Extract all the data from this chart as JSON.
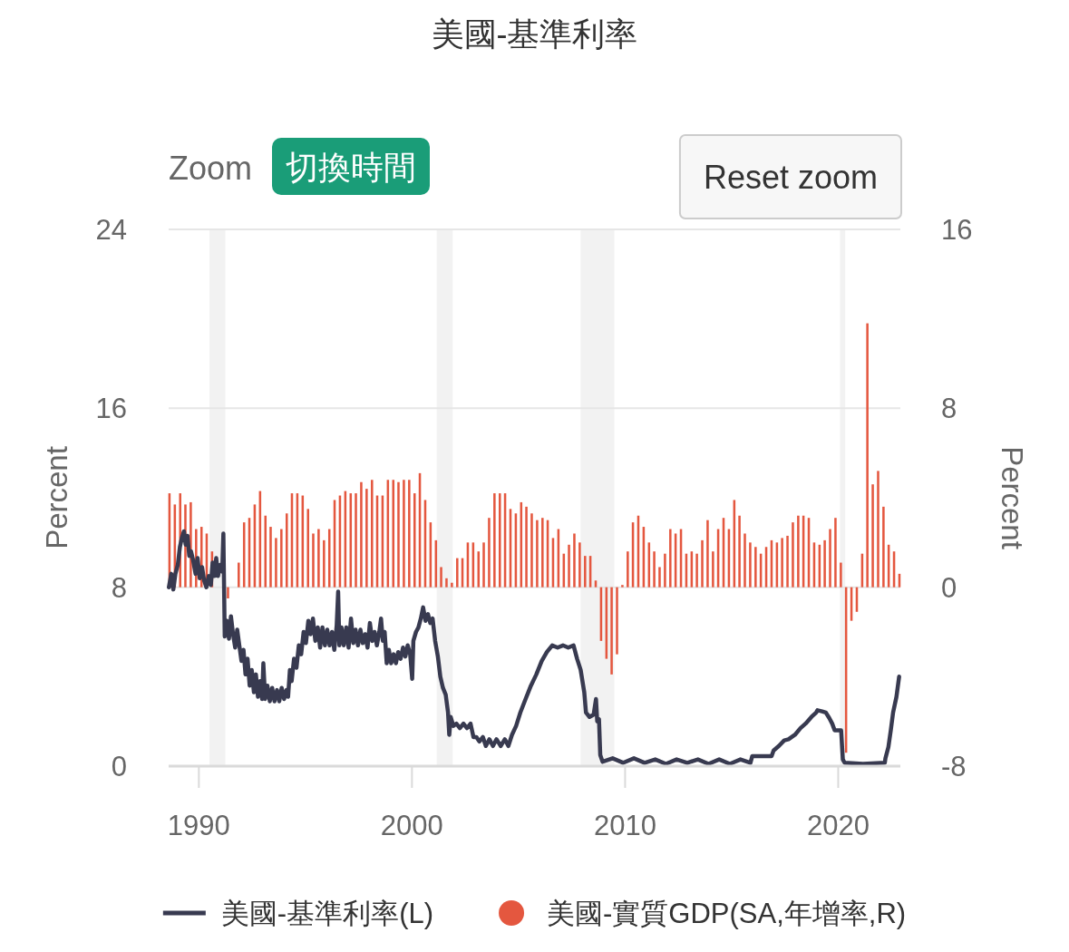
{
  "chart_data": {
    "type": "bar",
    "title": "美國-基準利率",
    "ylabel": "Percent",
    "y2label": "Percent",
    "annotations": [
      "Zoom",
      "切換時間",
      "Reset zoom"
    ],
    "xlim": [
      "1988-08-01",
      "2022-12-01"
    ],
    "xticks": [
      "1990",
      "2000",
      "2010",
      "2020"
    ],
    "ylim": [
      0,
      24
    ],
    "yticks": [
      0,
      8,
      16,
      24
    ],
    "y2lim": [
      -8,
      16
    ],
    "y2ticks": [
      -8,
      0,
      8,
      16
    ],
    "grid": "y",
    "legend": "bottom",
    "bands": [
      {
        "axis": "x",
        "from": "1990-07-01",
        "to": "1991-03-31",
        "color": "#f2f2f2"
      },
      {
        "axis": "x",
        "from": "2001-03-01",
        "to": "2001-11-30",
        "color": "#f2f2f2"
      },
      {
        "axis": "x",
        "from": "2007-12-01",
        "to": "2009-06-30",
        "color": "#f2f2f2"
      },
      {
        "axis": "x",
        "from": "2020-02-01",
        "to": "2020-04-30",
        "color": "#f2f2f2"
      }
    ],
    "series": [
      {
        "name": "美國-基準利率(L)",
        "type": "line",
        "color": "#383a50",
        "x": [
          "1988-08-05",
          "1988-09-15",
          "1988-10-20",
          "1988-11-25",
          "1989-01-05",
          "1989-02-10",
          "1989-03-15",
          "1989-04-20",
          "1989-05-20",
          "1989-06-20",
          "1989-07-20",
          "1989-08-20",
          "1989-09-25",
          "1989-11-05",
          "1989-12-10",
          "1990-01-15",
          "1990-02-25",
          "1990-04-01",
          "1990-05-10",
          "1990-06-20",
          "1990-07-25",
          "1990-08-25",
          "1990-09-25",
          "1990-10-25",
          "1990-11-25",
          "1991-01-01",
          "1991-02-05",
          "1991-02-25",
          "1991-03-20",
          "1991-04-25",
          "1991-06-01",
          "1991-07-05",
          "1991-08-10",
          "1991-09-15",
          "1991-10-20",
          "1991-11-25",
          "1992-01-01",
          "1992-02-05",
          "1992-03-10",
          "1992-04-15",
          "1992-05-20",
          "1992-06-25",
          "1992-08-01",
          "1992-09-05",
          "1992-10-10",
          "1992-11-15",
          "1992-12-20",
          "1993-01-10",
          "1993-02-10",
          "1993-03-20",
          "1993-05-01",
          "1993-06-10",
          "1993-07-20",
          "1993-09-01",
          "1993-10-10",
          "1993-11-20",
          "1994-01-01",
          "1994-02-10",
          "1994-03-10",
          "1994-04-10",
          "1994-05-10",
          "1994-06-20",
          "1994-08-01",
          "1994-09-10",
          "1994-10-20",
          "1994-12-01",
          "1995-01-10",
          "1995-02-20",
          "1995-04-01",
          "1995-05-10",
          "1995-06-20",
          "1995-08-01",
          "1995-09-10",
          "1995-10-20",
          "1995-12-01",
          "1996-01-10",
          "1996-02-20",
          "1996-04-01",
          "1996-05-10",
          "1996-06-20",
          "1996-07-15",
          "1996-08-05",
          "1996-09-10",
          "1996-10-20",
          "1996-12-01",
          "1997-01-10",
          "1997-02-20",
          "1997-04-01",
          "1997-05-10",
          "1997-06-20",
          "1997-08-01",
          "1997-09-10",
          "1997-10-20",
          "1997-12-01",
          "1998-01-10",
          "1998-02-20",
          "1998-04-01",
          "1998-05-10",
          "1998-06-20",
          "1998-07-20",
          "1998-08-20",
          "1998-09-20",
          "1998-10-25",
          "1998-12-01",
          "1999-01-10",
          "1999-02-20",
          "1999-04-01",
          "1999-05-10",
          "1999-06-20",
          "1999-08-01",
          "1999-09-10",
          "1999-10-20",
          "1999-12-01",
          "2000-01-05",
          "2000-01-25",
          "2000-03-10",
          "2000-04-20",
          "2000-06-01",
          "2000-07-10",
          "2000-08-20",
          "2000-10-01",
          "2000-11-10",
          "2000-12-20",
          "2001-02-01",
          "2001-03-20",
          "2001-05-01",
          "2001-06-15",
          "2001-08-01",
          "2001-09-10",
          "2001-10-01",
          "2001-10-25",
          "2001-12-10",
          "2002-02-01",
          "2002-04-01",
          "2002-06-01",
          "2002-08-01",
          "2002-10-01",
          "2002-11-20",
          "2003-01-10",
          "2003-03-01",
          "2003-05-01",
          "2003-06-20",
          "2003-08-20",
          "2003-10-20",
          "2003-12-20",
          "2004-03-01",
          "2004-05-10",
          "2004-07-10",
          "2004-09-10",
          "2004-11-20",
          "2005-02-01",
          "2005-05-01",
          "2005-08-01",
          "2005-11-01",
          "2006-02-01",
          "2006-05-01",
          "2006-08-01",
          "2006-11-01",
          "2007-02-01",
          "2007-05-01",
          "2007-08-01",
          "2007-10-01",
          "2007-12-01",
          "2008-02-01",
          "2008-03-01",
          "2008-05-01",
          "2008-07-10",
          "2008-08-20",
          "2008-09-10",
          "2008-10-10",
          "2008-11-01",
          "2008-12-10",
          "2009-06-01",
          "2009-12-01",
          "2010-06-01",
          "2010-12-01",
          "2011-06-01",
          "2011-12-01",
          "2012-06-01",
          "2012-12-01",
          "2013-06-01",
          "2013-12-01",
          "2014-06-01",
          "2014-12-01",
          "2015-06-01",
          "2015-11-20",
          "2015-12-20",
          "2016-11-15",
          "2016-12-20",
          "2017-03-20",
          "2017-06-20",
          "2017-09-01",
          "2017-12-20",
          "2018-03-25",
          "2018-06-20",
          "2018-09-30",
          "2018-12-20",
          "2019-01-10",
          "2019-04-01",
          "2019-06-01",
          "2019-08-01",
          "2019-09-20",
          "2019-11-01",
          "2020-02-20",
          "2020-03-20",
          "2020-04-20",
          "2021-03-01",
          "2022-03-10",
          "2022-03-20",
          "2022-05-10",
          "2022-06-20",
          "2022-07-30",
          "2022-09-25",
          "2022-11-10"
        ],
        "values": [
          8.0,
          8.6,
          7.9,
          8.6,
          9.0,
          9.8,
          10.2,
          10.5,
          9.9,
          10.3,
          9.4,
          9.6,
          9.2,
          8.6,
          9.3,
          8.4,
          8.9,
          8.3,
          8.0,
          8.5,
          8.1,
          9.1,
          8.5,
          9.3,
          8.5,
          9.0,
          8.7,
          10.4,
          5.8,
          6.5,
          5.7,
          6.7,
          5.9,
          5.3,
          6.1,
          5.4,
          4.7,
          5.2,
          4.1,
          4.8,
          3.6,
          4.3,
          3.3,
          4.1,
          3.1,
          3.8,
          3.0,
          4.6,
          3.0,
          3.6,
          2.9,
          3.5,
          2.9,
          3.4,
          2.9,
          3.5,
          3.0,
          3.4,
          3.1,
          4.3,
          3.8,
          4.8,
          4.4,
          5.4,
          5.0,
          6.0,
          5.5,
          6.5,
          5.9,
          6.6,
          5.6,
          6.2,
          5.3,
          6.2,
          5.4,
          6.1,
          5.4,
          6.0,
          5.2,
          6.3,
          7.8,
          5.4,
          6.2,
          5.4,
          6.2,
          5.3,
          6.6,
          5.5,
          6.1,
          5.4,
          6.1,
          5.5,
          5.9,
          5.3,
          6.4,
          5.6,
          6.0,
          5.4,
          6.0,
          6.6,
          5.6,
          6.0,
          4.6,
          5.2,
          4.6,
          5.0,
          4.6,
          5.1,
          4.8,
          5.3,
          4.9,
          5.4,
          5.0,
          3.9,
          5.6,
          6.0,
          6.2,
          6.6,
          7.1,
          6.5,
          6.8,
          6.4,
          6.6,
          5.6,
          4.9,
          4.0,
          3.5,
          3.2,
          2.4,
          1.4,
          2.2,
          1.8,
          1.9,
          1.7,
          1.9,
          1.7,
          1.9,
          1.3,
          1.3,
          1.1,
          1.3,
          0.9,
          1.2,
          0.9,
          1.2,
          0.9,
          1.2,
          0.9,
          1.4,
          1.8,
          2.4,
          3.0,
          3.6,
          4.1,
          4.7,
          5.1,
          5.4,
          5.3,
          5.4,
          5.3,
          5.4,
          4.8,
          4.3,
          3.3,
          2.4,
          2.2,
          2.3,
          3.0,
          2.0,
          2.1,
          0.5,
          0.2,
          0.35,
          0.15,
          0.35,
          0.15,
          0.3,
          0.1,
          0.3,
          0.15,
          0.3,
          0.1,
          0.3,
          0.1,
          0.3,
          0.15,
          0.45,
          0.45,
          0.7,
          0.9,
          1.15,
          1.2,
          1.4,
          1.7,
          1.9,
          2.2,
          2.4,
          2.5,
          2.45,
          2.4,
          2.15,
          1.9,
          1.6,
          1.6,
          0.3,
          0.15,
          0.1,
          0.15,
          0.35,
          0.85,
          1.6,
          2.4,
          3.1,
          4.0
        ]
      },
      {
        "name": "美國-實質GDP(SA,年增率,R)",
        "axis": "y2",
        "color": "#e4573f",
        "x": [
          "1988-08-15",
          "1988-11-15",
          "1989-02-15",
          "1989-05-15",
          "1989-08-15",
          "1989-11-15",
          "1990-02-15",
          "1990-05-15",
          "1990-08-15",
          "1990-11-15",
          "1991-02-15",
          "1991-05-15",
          "1991-08-15",
          "1991-11-15",
          "1992-02-15",
          "1992-05-15",
          "1992-08-15",
          "1992-11-15",
          "1993-02-15",
          "1993-05-15",
          "1993-08-15",
          "1993-11-15",
          "1994-02-15",
          "1994-05-15",
          "1994-08-15",
          "1994-11-15",
          "1995-02-15",
          "1995-05-15",
          "1995-08-15",
          "1995-11-15",
          "1996-02-15",
          "1996-05-15",
          "1996-08-15",
          "1996-11-15",
          "1997-02-15",
          "1997-05-15",
          "1997-08-15",
          "1997-11-15",
          "1998-02-15",
          "1998-05-15",
          "1998-08-15",
          "1998-11-15",
          "1999-02-15",
          "1999-05-15",
          "1999-08-15",
          "1999-11-15",
          "2000-02-15",
          "2000-05-15",
          "2000-08-15",
          "2000-11-15",
          "2001-02-15",
          "2001-05-15",
          "2001-08-15",
          "2001-11-15",
          "2002-02-15",
          "2002-05-15",
          "2002-08-15",
          "2002-11-15",
          "2003-02-15",
          "2003-05-15",
          "2003-08-15",
          "2003-11-15",
          "2004-02-15",
          "2004-05-15",
          "2004-08-15",
          "2004-11-15",
          "2005-02-15",
          "2005-05-15",
          "2005-08-15",
          "2005-11-15",
          "2006-02-15",
          "2006-05-15",
          "2006-08-15",
          "2006-11-15",
          "2007-02-15",
          "2007-05-15",
          "2007-08-15",
          "2007-11-15",
          "2008-02-15",
          "2008-05-15",
          "2008-08-15",
          "2008-11-15",
          "2009-02-15",
          "2009-05-15",
          "2009-08-15",
          "2009-11-15",
          "2010-02-15",
          "2010-05-15",
          "2010-08-15",
          "2010-11-15",
          "2011-02-15",
          "2011-05-15",
          "2011-08-15",
          "2011-11-15",
          "2012-02-15",
          "2012-05-15",
          "2012-08-15",
          "2012-11-15",
          "2013-02-15",
          "2013-05-15",
          "2013-08-15",
          "2013-11-15",
          "2014-02-15",
          "2014-05-15",
          "2014-08-15",
          "2014-11-15",
          "2015-02-15",
          "2015-05-15",
          "2015-08-15",
          "2015-11-15",
          "2016-02-15",
          "2016-05-15",
          "2016-08-15",
          "2016-11-15",
          "2017-02-15",
          "2017-05-15",
          "2017-08-15",
          "2017-11-15",
          "2018-02-15",
          "2018-05-15",
          "2018-08-15",
          "2018-11-15",
          "2019-02-15",
          "2019-05-15",
          "2019-08-15",
          "2019-11-15",
          "2020-02-15",
          "2020-05-15",
          "2020-08-15",
          "2020-11-15",
          "2021-02-15",
          "2021-05-15",
          "2021-08-15",
          "2021-11-15",
          "2022-02-15",
          "2022-05-15",
          "2022-08-15",
          "2022-11-15"
        ],
        "values": [
          4.2,
          3.7,
          4.2,
          3.7,
          3.8,
          2.6,
          2.7,
          2.4,
          1.6,
          null,
          null,
          -0.5,
          null,
          1.1,
          2.9,
          3.1,
          3.7,
          4.3,
          3.2,
          2.7,
          2.2,
          2.6,
          3.3,
          4.2,
          4.2,
          4.1,
          3.5,
          2.4,
          2.6,
          2.1,
          2.6,
          3.9,
          4.1,
          4.3,
          4.2,
          4.2,
          4.7,
          4.4,
          4.8,
          4.1,
          4.1,
          4.8,
          4.8,
          4.7,
          4.8,
          4.8,
          4.2,
          5.1,
          3.9,
          2.9,
          2.1,
          0.9,
          0.4,
          0.2,
          1.3,
          1.3,
          2.0,
          2.0,
          1.6,
          2.0,
          3.1,
          4.2,
          4.2,
          4.2,
          3.5,
          3.3,
          3.8,
          3.6,
          3.3,
          3.0,
          3.1,
          3.0,
          2.2,
          2.6,
          1.5,
          1.9,
          2.4,
          2.0,
          1.4,
          1.4,
          0.3,
          -2.4,
          -3.2,
          -3.9,
          -3.0,
          0.1,
          1.6,
          2.9,
          3.2,
          2.7,
          2.0,
          1.6,
          0.9,
          1.5,
          2.6,
          2.4,
          2.6,
          1.5,
          1.6,
          1.5,
          2.1,
          3.0,
          1.6,
          2.6,
          3.1,
          2.6,
          3.9,
          3.2,
          2.4,
          2.0,
          1.8,
          1.5,
          1.8,
          2.1,
          2.0,
          2.2,
          2.3,
          2.9,
          3.2,
          3.2,
          3.1,
          2.0,
          1.9,
          2.1,
          2.6,
          3.1,
          1.1,
          -7.4,
          -1.5,
          -1.1,
          1.5,
          11.8,
          4.6,
          5.2,
          3.6,
          1.9,
          1.6,
          0.6
        ]
      }
    ]
  }
}
